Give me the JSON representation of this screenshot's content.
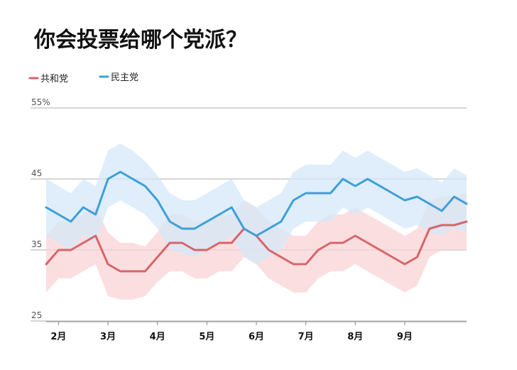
{
  "chart_data": {
    "type": "line",
    "title": "你会投票给哪个党派？",
    "xlabel": "",
    "ylabel": "",
    "ylim": [
      25,
      55
    ],
    "yticks": [
      {
        "value": 25,
        "label": "25"
      },
      {
        "value": 35,
        "label": "35"
      },
      {
        "value": 45,
        "label": "45"
      },
      {
        "value": 55,
        "label": "55%"
      }
    ],
    "grid": true,
    "legend": "top-left",
    "x_range": [
      0,
      34
    ],
    "xticks": [
      {
        "x": 1,
        "label": "2月"
      },
      {
        "x": 5,
        "label": "3月"
      },
      {
        "x": 9,
        "label": "4月"
      },
      {
        "x": 13,
        "label": "5月"
      },
      {
        "x": 17,
        "label": "6月"
      },
      {
        "x": 21,
        "label": "7月"
      },
      {
        "x": 25,
        "label": "8月"
      },
      {
        "x": 29,
        "label": "9月"
      }
    ],
    "x": [
      0,
      1,
      2,
      3,
      4,
      5,
      6,
      7,
      8,
      9,
      10,
      11,
      12,
      13,
      14,
      15,
      16,
      17,
      18,
      19,
      20,
      21,
      22,
      23,
      24,
      25,
      26,
      27,
      28,
      29,
      30,
      31,
      32,
      33,
      34
    ],
    "series": [
      {
        "name": "共和党",
        "color": "#d9646a",
        "band_color": "#fad4d6",
        "values": [
          33,
          35,
          35,
          36,
          37,
          33,
          32,
          32,
          32,
          34,
          36,
          36,
          35,
          35,
          36,
          36,
          38,
          37,
          35,
          34,
          33,
          33,
          35,
          36,
          36,
          37,
          36,
          35,
          34,
          33,
          34,
          38,
          38.5,
          38.5,
          39
        ],
        "lower": [
          29,
          31,
          31,
          32,
          33,
          28.5,
          28,
          28,
          28.5,
          30.5,
          32,
          32,
          31,
          31,
          32,
          32,
          34,
          33,
          31,
          30,
          29,
          29,
          31,
          32,
          32,
          33,
          32,
          31,
          30,
          29,
          30,
          34,
          35,
          35,
          35
        ],
        "upper": [
          37,
          39,
          39,
          40,
          41,
          37.5,
          36,
          36,
          35.5,
          37.5,
          40,
          40,
          39,
          39,
          40,
          40,
          42,
          41,
          39,
          38,
          37,
          37,
          39,
          40,
          40,
          41,
          40,
          39,
          38,
          37,
          38,
          42,
          42.5,
          42.5,
          43
        ]
      },
      {
        "name": "民主党",
        "color": "#3d9fd8",
        "band_color": "#d4e8f8",
        "values": [
          41,
          40,
          39,
          41,
          40,
          45,
          46,
          45,
          44,
          42,
          39,
          38,
          38,
          39,
          40,
          41,
          38,
          37,
          38,
          39,
          42,
          43,
          43,
          43,
          45,
          44,
          45,
          44,
          43,
          42,
          42.5,
          41.5,
          40.5,
          42.5,
          41.5
        ],
        "lower": [
          37,
          36,
          35,
          37,
          36,
          41,
          42,
          41,
          40,
          38,
          35,
          34.5,
          34,
          35,
          36,
          37,
          34,
          33,
          34,
          35,
          38,
          39,
          39,
          39,
          41,
          40,
          41,
          40,
          39,
          38,
          38.5,
          37.5,
          37,
          38,
          37.5
        ],
        "upper": [
          45,
          44,
          43,
          45,
          44,
          49,
          50,
          49,
          47.5,
          45.5,
          43,
          42,
          42,
          43,
          44,
          45,
          42,
          41,
          42,
          43,
          46,
          47,
          47,
          47,
          49,
          48,
          49,
          48,
          47,
          46,
          46.5,
          45.5,
          44.5,
          46.5,
          45.5
        ]
      }
    ]
  }
}
